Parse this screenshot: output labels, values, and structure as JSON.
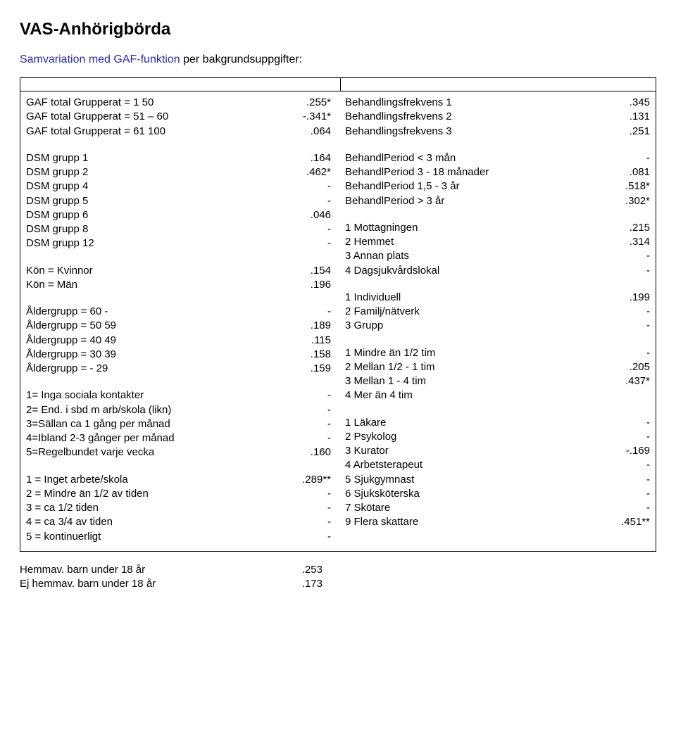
{
  "heading": "VAS-Anhörigbörda",
  "subtitle_prefix": "Samvariation med GAF-funktion",
  "subtitle_suffix": " per bakgrundsuppgifter:",
  "left": {
    "g1": [
      {
        "l": "GAF total Grupperat = 1 50",
        "v": ".255*"
      },
      {
        "l": "GAF total Grupperat = 51 – 60",
        "v": "-.341*"
      },
      {
        "l": "GAF total Grupperat = 61 100",
        "v": ".064"
      }
    ],
    "g2": [
      {
        "l": "DSM grupp 1",
        "v": ".164"
      },
      {
        "l": "DSM grupp 2",
        "v": ".462*"
      },
      {
        "l": "DSM grupp 4",
        "v": "-"
      },
      {
        "l": "DSM grupp 5",
        "v": "-"
      },
      {
        "l": "DSM grupp 6",
        "v": ".046"
      },
      {
        "l": "DSM grupp 8",
        "v": "-"
      },
      {
        "l": "DSM grupp 12",
        "v": "-"
      }
    ],
    "g3": [
      {
        "l": "Kön = Kvinnor",
        "v": ".154"
      },
      {
        "l": "Kön = Män",
        "v": ".196"
      }
    ],
    "g4": [
      {
        "l": "Åldergrupp = 60 -",
        "v": "-"
      },
      {
        "l": "Åldergrupp = 50 59",
        "v": ".189"
      },
      {
        "l": "Åldergrupp = 40 49",
        "v": ".115"
      },
      {
        "l": "Åldergrupp = 30 39",
        "v": ".158"
      },
      {
        "l": "Åldergrupp =  - 29",
        "v": ".159"
      }
    ],
    "g5": [
      {
        "l": "1= Inga sociala kontakter",
        "v": "-"
      },
      {
        "l": "2= End. i sbd m arb/skola (likn)",
        "v": "-"
      },
      {
        "l": "3=Sällan ca 1 gång per månad",
        "v": "-"
      },
      {
        "l": "4=Ibland 2-3 gånger per månad",
        "v": "-"
      },
      {
        "l": "5=Regelbundet varje vecka",
        "v": ".160"
      }
    ],
    "g6": [
      {
        "l": "1 = Inget arbete/skola",
        "v": ".289**"
      },
      {
        "l": "2 = Mindre än 1/2 av tiden",
        "v": "-"
      },
      {
        "l": "3 = ca 1/2 tiden",
        "v": "-"
      },
      {
        "l": "4 = ca 3/4 av tiden",
        "v": "-"
      },
      {
        "l": "5 = kontinuerligt",
        "v": "-"
      }
    ]
  },
  "right": {
    "g1": [
      {
        "l": "Behandlingsfrekvens 1",
        "v": ".345"
      },
      {
        "l": "Behandlingsfrekvens 2",
        "v": ".131"
      },
      {
        "l": "Behandlingsfrekvens 3",
        "v": ".251"
      }
    ],
    "g2": [
      {
        "l": "BehandlPeriod  < 3 mån",
        "v": "-"
      },
      {
        "l": "BehandlPeriod 3 - 18 månader",
        "v": ".081"
      },
      {
        "l": "BehandlPeriod 1,5 - 3 år",
        "v": ".518*"
      },
      {
        "l": "BehandlPeriod  > 3 år",
        "v": ".302*"
      }
    ],
    "g3": [
      {
        "l": "1 Mottagningen",
        "v": ".215"
      },
      {
        "l": "2 Hemmet",
        "v": ".314"
      },
      {
        "l": "3 Annan plats",
        "v": "-"
      },
      {
        "l": "4 Dagsjukvårdslokal",
        "v": "-"
      }
    ],
    "g4": [
      {
        "l": "1 Individuell",
        "v": ".199"
      },
      {
        "l": "2 Familj/nätverk",
        "v": "-"
      },
      {
        "l": "3 Grupp",
        "v": "-"
      }
    ],
    "g5": [
      {
        "l": "1 Mindre än 1/2 tim",
        "v": "-"
      },
      {
        "l": "2 Mellan 1/2 - 1 tim",
        "v": ".205"
      },
      {
        "l": "3 Mellan 1 - 4 tim",
        "v": ".437*"
      },
      {
        "l": "4 Mer än 4 tim",
        "v": ""
      }
    ],
    "g6": [
      {
        "l": "1 Läkare",
        "v": "-"
      },
      {
        "l": "2 Psykolog",
        "v": "-"
      },
      {
        "l": "3 Kurator",
        "v": "-.169"
      },
      {
        "l": "4 Arbetsterapeut",
        "v": "-"
      },
      {
        "l": "5 Sjukgymnast",
        "v": "-"
      },
      {
        "l": "6 Sjuksköterska",
        "v": "-"
      },
      {
        "l": "7 Skötare",
        "v": "-"
      },
      {
        "l": "9 Flera skattare",
        "v": ".451**"
      }
    ]
  },
  "footer": [
    {
      "l": "Hemmav. barn under 18 år",
      "v": ".253"
    },
    {
      "l": "Ej hemmav. barn under 18 år",
      "v": ".173"
    }
  ]
}
